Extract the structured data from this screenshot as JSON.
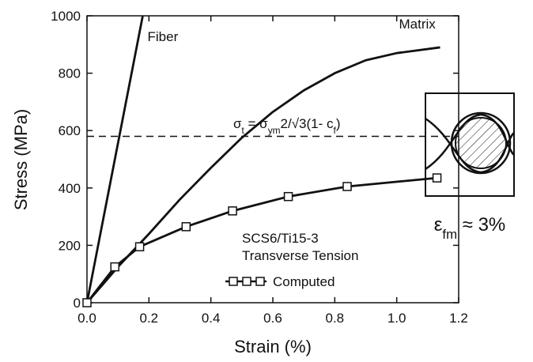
{
  "chart_data": {
    "type": "line",
    "xlabel": "Strain  (%)",
    "ylabel": "Stress  (MPa)",
    "xlim": [
      0,
      1.2
    ],
    "ylim": [
      0,
      1000
    ],
    "xticks": [
      {
        "value": 0,
        "label": "0.0"
      },
      0.2,
      0.4,
      0.6,
      0.8,
      {
        "value": 1,
        "label": "1.0"
      },
      1.2
    ],
    "yticks": [
      0,
      200,
      400,
      600,
      800,
      1000
    ],
    "legend": "lower right",
    "series": [
      {
        "name": "Fiber",
        "color": "#111111",
        "x": [
          0,
          0.18
        ],
        "values": [
          0,
          1000
        ]
      },
      {
        "name": "Matrix",
        "color": "#111111",
        "x": [
          0,
          0.1,
          0.2,
          0.3,
          0.4,
          0.5,
          0.6,
          0.7,
          0.8,
          0.9,
          1.0,
          1.14
        ],
        "values": [
          0,
          125,
          240,
          360,
          470,
          575,
          665,
          740,
          800,
          845,
          870,
          890
        ]
      },
      {
        "name": "Computed",
        "color": "#111111",
        "marker": "square",
        "x": [
          0,
          0.09,
          0.17,
          0.32,
          0.47,
          0.65,
          0.84,
          1.13
        ],
        "values": [
          0,
          125,
          195,
          265,
          320,
          370,
          405,
          435
        ]
      }
    ],
    "hline": {
      "value": 580,
      "style": "dashed",
      "label": [
        {
          "text": "σ"
        },
        {
          "text": "t",
          "sub": true
        },
        {
          "text": " = σ"
        },
        {
          "text": "ym",
          "sub": true
        },
        {
          "text": "2/√3(1- c"
        },
        {
          "text": "f",
          "sub": true
        },
        {
          "text": ")"
        }
      ]
    },
    "annotations": [
      "SCS6/Ti15-3",
      "Transverse Tension"
    ],
    "inset": {
      "label": [
        {
          "text": "ε"
        },
        {
          "text": "fm",
          "sub": true
        },
        {
          "text": " ≈ 3%"
        }
      ]
    }
  }
}
